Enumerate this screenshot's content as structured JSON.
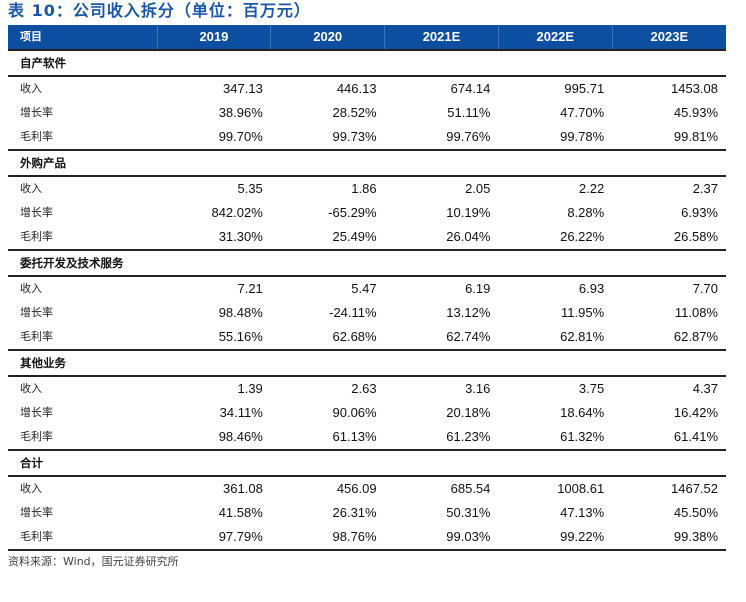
{
  "title": "表 10：公司收入拆分（单位：百万元）",
  "columns": [
    "项目",
    "2019",
    "2020",
    "2021E",
    "2022E",
    "2023E"
  ],
  "sections": [
    {
      "name": "自产软件",
      "rows": [
        {
          "label": "收入",
          "values": [
            "347.13",
            "446.13",
            "674.14",
            "995.71",
            "1453.08"
          ]
        },
        {
          "label": "增长率",
          "values": [
            "38.96%",
            "28.52%",
            "51.11%",
            "47.70%",
            "45.93%"
          ]
        },
        {
          "label": "毛利率",
          "values": [
            "99.70%",
            "99.73%",
            "99.76%",
            "99.78%",
            "99.81%"
          ]
        }
      ]
    },
    {
      "name": "外购产品",
      "rows": [
        {
          "label": "收入",
          "values": [
            "5.35",
            "1.86",
            "2.05",
            "2.22",
            "2.37"
          ]
        },
        {
          "label": "增长率",
          "values": [
            "842.02%",
            "-65.29%",
            "10.19%",
            "8.28%",
            "6.93%"
          ]
        },
        {
          "label": "毛利率",
          "values": [
            "31.30%",
            "25.49%",
            "26.04%",
            "26.22%",
            "26.58%"
          ]
        }
      ]
    },
    {
      "name": "委托开发及技术服务",
      "rows": [
        {
          "label": "收入",
          "values": [
            "7.21",
            "5.47",
            "6.19",
            "6.93",
            "7.70"
          ]
        },
        {
          "label": "增长率",
          "values": [
            "98.48%",
            "-24.11%",
            "13.12%",
            "11.95%",
            "11.08%"
          ]
        },
        {
          "label": "毛利率",
          "values": [
            "55.16%",
            "62.68%",
            "62.74%",
            "62.81%",
            "62.87%"
          ]
        }
      ]
    },
    {
      "name": "其他业务",
      "rows": [
        {
          "label": "收入",
          "values": [
            "1.39",
            "2.63",
            "3.16",
            "3.75",
            "4.37"
          ]
        },
        {
          "label": "增长率",
          "values": [
            "34.11%",
            "90.06%",
            "20.18%",
            "18.64%",
            "16.42%"
          ]
        },
        {
          "label": "毛利率",
          "values": [
            "98.46%",
            "61.13%",
            "61.23%",
            "61.32%",
            "61.41%"
          ]
        }
      ]
    },
    {
      "name": "合计",
      "rows": [
        {
          "label": "收入",
          "values": [
            "361.08",
            "456.09",
            "685.54",
            "1008.61",
            "1467.52"
          ]
        },
        {
          "label": "增长率",
          "values": [
            "41.58%",
            "26.31%",
            "50.31%",
            "47.13%",
            "45.50%"
          ]
        },
        {
          "label": "毛利率",
          "values": [
            "97.79%",
            "98.76%",
            "99.03%",
            "99.22%",
            "99.38%"
          ]
        }
      ]
    }
  ],
  "source": "资料来源：Wind，国元证券研究所",
  "colors": {
    "header_bg": "#0c4fa1",
    "title": "#1b57a6"
  }
}
